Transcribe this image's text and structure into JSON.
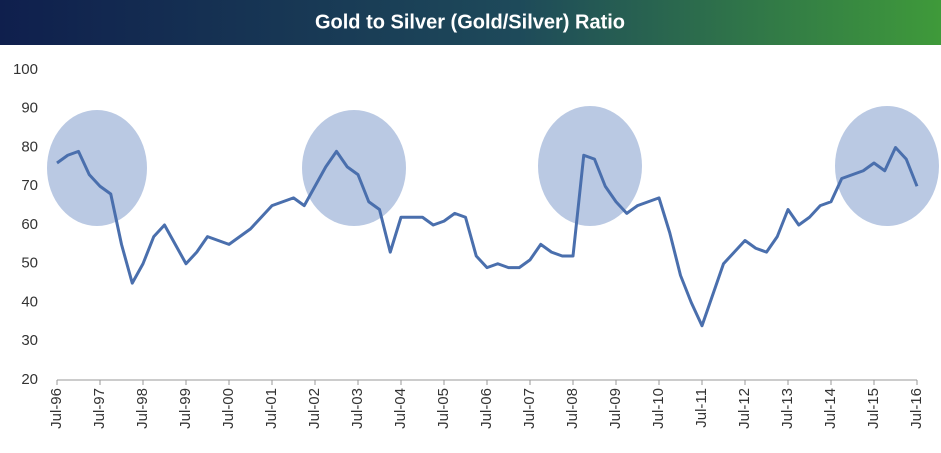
{
  "chart_data": {
    "type": "line",
    "title": "Gold to Silver (Gold/Silver) Ratio",
    "categories": [
      "Jul-96",
      null,
      null,
      null,
      "Jul-97",
      null,
      null,
      null,
      "Jul-98",
      null,
      null,
      null,
      "Jul-99",
      null,
      null,
      null,
      "Jul-00",
      null,
      null,
      null,
      "Jul-01",
      null,
      null,
      null,
      "Jul-02",
      null,
      null,
      null,
      "Jul-03",
      null,
      null,
      null,
      "Jul-04",
      null,
      null,
      null,
      "Jul-05",
      null,
      null,
      null,
      "Jul-06",
      null,
      null,
      null,
      "Jul-07",
      null,
      null,
      null,
      "Jul-08",
      null,
      null,
      null,
      "Jul-09",
      null,
      null,
      null,
      "Jul-10",
      null,
      null,
      null,
      "Jul-11",
      null,
      null,
      null,
      "Jul-12",
      null,
      null,
      null,
      "Jul-13",
      null,
      null,
      null,
      "Jul-14",
      null,
      null,
      null,
      "Jul-15",
      null,
      null,
      null,
      "Jul-16"
    ],
    "series": [
      {
        "name": "Gold/Silver",
        "color": "#4a6fad",
        "values": [
          76,
          78,
          79,
          73,
          70,
          68,
          55,
          45,
          50,
          57,
          60,
          55,
          50,
          53,
          57,
          56,
          55,
          57,
          59,
          62,
          65,
          66,
          67,
          65,
          70,
          75,
          79,
          75,
          73,
          66,
          64,
          53,
          62,
          62,
          62,
          60,
          61,
          63,
          62,
          52,
          49,
          50,
          49,
          49,
          51,
          55,
          53,
          52,
          52,
          78,
          77,
          70,
          66,
          63,
          65,
          66,
          67,
          58,
          47,
          40,
          34,
          42,
          50,
          53,
          56,
          54,
          53,
          57,
          64,
          60,
          62,
          65,
          66,
          72,
          73,
          74,
          76,
          74,
          80,
          77,
          70
        ]
      }
    ],
    "ylim": [
      20,
      100
    ],
    "yticks": [
      20,
      30,
      40,
      50,
      60,
      70,
      80,
      90,
      100
    ]
  }
}
